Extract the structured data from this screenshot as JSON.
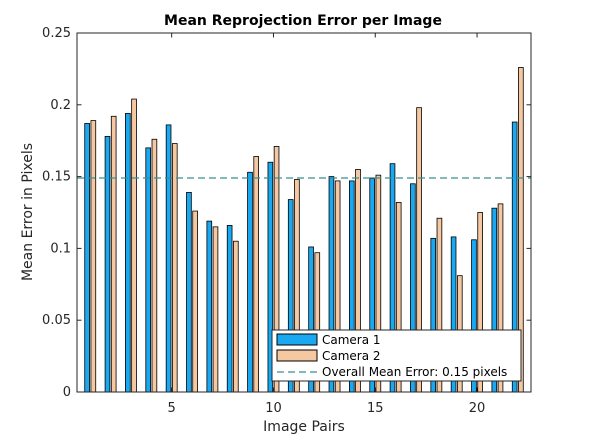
{
  "chart_data": {
    "type": "bar",
    "title": "Mean Reprojection Error per Image",
    "xlabel": "Image Pairs",
    "ylabel": "Mean Error in Pixels",
    "categories": [
      1,
      2,
      3,
      4,
      5,
      6,
      7,
      8,
      9,
      10,
      11,
      12,
      13,
      14,
      15,
      16,
      17,
      18,
      19,
      20,
      21,
      22
    ],
    "xticks": [
      5,
      10,
      15,
      20
    ],
    "yticks": [
      0,
      0.05,
      0.1,
      0.15,
      0.2,
      0.25
    ],
    "xlim": [
      0.35,
      22.65
    ],
    "ylim": [
      0,
      0.25
    ],
    "series": [
      {
        "name": "Camera 1",
        "color": "#1aa9f0",
        "values": [
          0.187,
          0.178,
          0.194,
          0.17,
          0.186,
          0.139,
          0.119,
          0.116,
          0.153,
          0.16,
          0.134,
          0.101,
          0.15,
          0.147,
          0.149,
          0.159,
          0.145,
          0.107,
          0.108,
          0.106,
          0.128,
          0.188
        ]
      },
      {
        "name": "Camera 2",
        "color": "#f5c8a2",
        "values": [
          0.189,
          0.192,
          0.204,
          0.176,
          0.173,
          0.126,
          0.115,
          0.105,
          0.164,
          0.171,
          0.148,
          0.097,
          0.147,
          0.155,
          0.151,
          0.132,
          0.198,
          0.121,
          0.081,
          0.125,
          0.131,
          0.226
        ]
      }
    ],
    "reference_line": {
      "name": "Overall Mean Error: 0.15 pixels",
      "value": 0.149,
      "style": "dashed",
      "color": "#3a8f8f"
    },
    "legend_position": "bottom-right",
    "grid": false
  }
}
